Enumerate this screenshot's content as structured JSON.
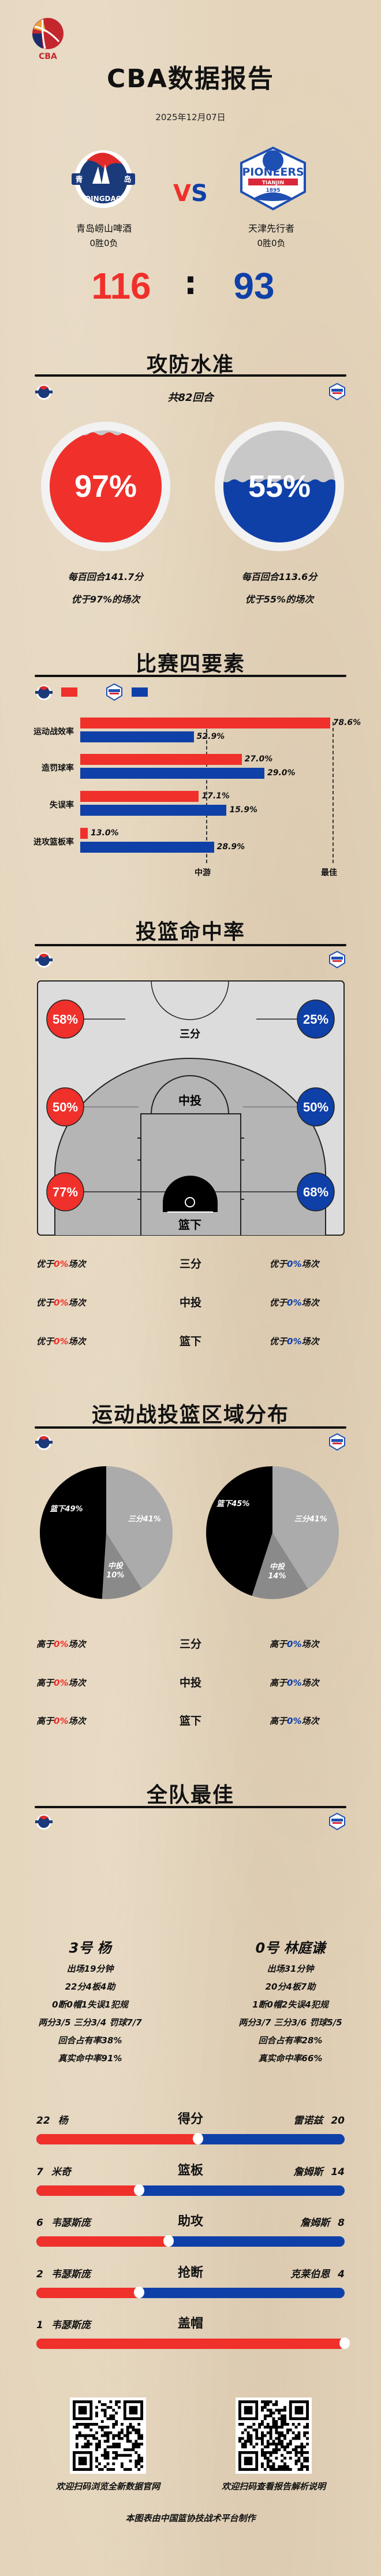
{
  "header": {
    "logo_text": "CBA",
    "title": "CBA数据报告",
    "date": "2025年12月07日"
  },
  "colors": {
    "home": "#f0302b",
    "away": "#0f40a8",
    "background": "#e4d4bb"
  },
  "teams": {
    "home": {
      "name": "青岛崂山啤酒",
      "record": "0胜0负",
      "score": "116",
      "logo_text": "QINGDAO",
      "logo_cn_left": "青",
      "logo_cn_right": "岛"
    },
    "away": {
      "name": "天津先行者",
      "record": "0胜0负",
      "score": "93",
      "logo_text": "PIONEERS",
      "logo_sub": "TIANJIN",
      "logo_year": "1895"
    },
    "vs_left": "V",
    "vs_right": "S",
    "separator": ":"
  },
  "efficiency": {
    "title": "攻防水准",
    "possessions": "共82回合",
    "home": {
      "percent": 97,
      "label": "97%",
      "per100": "每百回合141.7分",
      "better": "优于97%的场次"
    },
    "away": {
      "percent": 55,
      "label": "55%",
      "per100": "每百回合113.6分",
      "better": "优于55%的场次"
    }
  },
  "four_factors": {
    "title": "比赛四要素",
    "mid_label": "中游",
    "best_label": "最佳",
    "rows": [
      {
        "label": "运动战效率",
        "home": {
          "value": "78.6%",
          "rank_fraction": 0.99
        },
        "away": {
          "value": "52.9%",
          "rank_fraction": 0.45
        }
      },
      {
        "label": "造罚球率",
        "home": {
          "value": "27.0%",
          "rank_fraction": 0.64
        },
        "away": {
          "value": "29.0%",
          "rank_fraction": 0.73
        }
      },
      {
        "label": "失误率",
        "home": {
          "value": "17.1%",
          "rank_fraction": 0.47
        },
        "away": {
          "value": "15.9%",
          "rank_fraction": 0.58
        }
      },
      {
        "label": "进攻篮板率",
        "home": {
          "value": "13.0%",
          "rank_fraction": 0.03
        },
        "away": {
          "value": "28.9%",
          "rank_fraction": 0.53
        }
      }
    ]
  },
  "shooting": {
    "title": "投篮命中率",
    "zones": [
      {
        "label": "三分",
        "home": "58%",
        "away": "25%",
        "home_rank": {
          "prefix": "优于",
          "value": "0%",
          "suffix": "场次"
        },
        "away_rank": {
          "prefix": "优于",
          "value": "0%",
          "suffix": "场次"
        }
      },
      {
        "label": "中投",
        "home": "50%",
        "away": "50%",
        "home_rank": {
          "prefix": "优于",
          "value": "0%",
          "suffix": "场次"
        },
        "away_rank": {
          "prefix": "优于",
          "value": "0%",
          "suffix": "场次"
        }
      },
      {
        "label": "篮下",
        "home": "77%",
        "away": "68%",
        "home_rank": {
          "prefix": "优于",
          "value": "0%",
          "suffix": "场次"
        },
        "away_rank": {
          "prefix": "优于",
          "value": "0%",
          "suffix": "场次"
        }
      }
    ]
  },
  "chart_data": {
    "type": "pie",
    "title": "运动战投篮区域分布",
    "pies": [
      {
        "team": "home",
        "slices": [
          {
            "label": "三分",
            "value": 41,
            "text": "三分41%"
          },
          {
            "label": "中投",
            "value": 10,
            "text": "10%"
          },
          {
            "label": "篮下",
            "value": 49,
            "text": "篮下49%"
          }
        ]
      },
      {
        "team": "away",
        "slices": [
          {
            "label": "三分",
            "value": 41,
            "text": "三分41%"
          },
          {
            "label": "中投",
            "value": 14,
            "text": "14%"
          },
          {
            "label": "篮下",
            "value": 45,
            "text": "篮下45%"
          }
        ]
      }
    ],
    "slice_colors": {
      "三分": "#ababab",
      "中投": "#8a8a8a",
      "篮下": "#000000"
    }
  },
  "distribution": {
    "rows": [
      {
        "label": "三分",
        "home": {
          "prefix": "高于",
          "value": "0%",
          "suffix": "场次"
        },
        "away": {
          "prefix": "高于",
          "value": "0%",
          "suffix": "场次"
        }
      },
      {
        "label": "中投",
        "home": {
          "prefix": "高于",
          "value": "0%",
          "suffix": "场次"
        },
        "away": {
          "prefix": "高于",
          "value": "0%",
          "suffix": "场次"
        }
      },
      {
        "label": "篮下",
        "home": {
          "prefix": "高于",
          "value": "0%",
          "suffix": "场次"
        },
        "away": {
          "prefix": "高于",
          "value": "0%",
          "suffix": "场次"
        }
      }
    ]
  },
  "best_players": {
    "title": "全队最佳",
    "home": {
      "name": "3号 杨",
      "lines": [
        "出场19分钟",
        "22分4板4助",
        "0断0帽1失误1犯规",
        "两分3/5  三分3/4  罚球7/7",
        "回合占有率38%",
        "真实命中率91%"
      ]
    },
    "away": {
      "name": "0号 林庭谦",
      "lines": [
        "出场31分钟",
        "20分4板7助",
        "1断0帽2失误4犯规",
        "两分3/7  三分3/6  罚球5/5",
        "回合占有率28%",
        "真实命中率66%"
      ]
    }
  },
  "leaders": [
    {
      "category": "得分",
      "home": {
        "value": 22,
        "player": "杨"
      },
      "away": {
        "value": 20,
        "player": "雷诺兹"
      }
    },
    {
      "category": "篮板",
      "home": {
        "value": 7,
        "player": "米奇"
      },
      "away": {
        "value": 14,
        "player": "詹姆斯"
      }
    },
    {
      "category": "助攻",
      "home": {
        "value": 6,
        "player": "韦瑟斯庞"
      },
      "away": {
        "value": 8,
        "player": "詹姆斯"
      }
    },
    {
      "category": "抢断",
      "home": {
        "value": 2,
        "player": "韦瑟斯庞"
      },
      "away": {
        "value": 4,
        "player": "克莱伯恩"
      }
    },
    {
      "category": "盖帽",
      "home": {
        "value": 1,
        "player": "韦瑟斯庞"
      },
      "away": {
        "value": null,
        "player": null
      }
    }
  ],
  "footer": {
    "qr_left_caption": "欢迎扫码浏览全新数据官网",
    "qr_right_caption": "欢迎扫码查看报告解析说明",
    "credit": "本图表由中国篮协技战术平台制作"
  }
}
